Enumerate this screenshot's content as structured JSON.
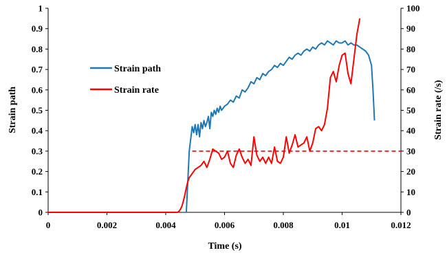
{
  "chart_data": {
    "type": "line",
    "xlabel": "Time (s)",
    "ylabel_left": "Strain path",
    "ylabel_right": "Strain rate (/s)",
    "xlim": [
      0,
      0.012
    ],
    "ylim_left": [
      0,
      1
    ],
    "ylim_right": [
      0,
      100
    ],
    "x_ticks": [
      "0",
      "0.002",
      "0.004",
      "0.006",
      "0.008",
      "0.01",
      "0.012"
    ],
    "y_left_ticks": [
      "0",
      "0.1",
      "0.2",
      "0.3",
      "0.4",
      "0.5",
      "0.6",
      "0.7",
      "0.8",
      "0.9",
      "1"
    ],
    "y_right_ticks": [
      "0",
      "10",
      "20",
      "30",
      "40",
      "50",
      "60",
      "70",
      "80",
      "90",
      "100"
    ],
    "grid": false,
    "legend_position": "upper-left",
    "series": [
      {
        "name": "Strain path",
        "axis": "left",
        "color": "#1f77b4",
        "x": [
          0.0047,
          0.00475,
          0.0048,
          0.00485,
          0.0049,
          0.00495,
          0.005,
          0.00505,
          0.0051,
          0.00515,
          0.0052,
          0.00525,
          0.0053,
          0.00535,
          0.0054,
          0.00545,
          0.0055,
          0.00555,
          0.0056,
          0.00565,
          0.0057,
          0.00575,
          0.0058,
          0.00585,
          0.0059,
          0.006,
          0.0061,
          0.0062,
          0.0063,
          0.0064,
          0.0065,
          0.0066,
          0.0067,
          0.0068,
          0.0069,
          0.007,
          0.0071,
          0.0072,
          0.0073,
          0.0074,
          0.0075,
          0.0076,
          0.0077,
          0.0078,
          0.0079,
          0.008,
          0.0081,
          0.0082,
          0.0083,
          0.0084,
          0.0085,
          0.0086,
          0.0087,
          0.0088,
          0.0089,
          0.009,
          0.0091,
          0.0092,
          0.0093,
          0.0094,
          0.0095,
          0.0096,
          0.0097,
          0.0098,
          0.0099,
          0.01,
          0.0101,
          0.0102,
          0.0103,
          0.0104,
          0.0105,
          0.0106,
          0.0107,
          0.0108,
          0.0109,
          0.011,
          0.01105,
          0.0111
        ],
        "values": [
          0.0,
          0.15,
          0.3,
          0.36,
          0.42,
          0.39,
          0.43,
          0.38,
          0.43,
          0.37,
          0.44,
          0.41,
          0.45,
          0.42,
          0.44,
          0.47,
          0.41,
          0.49,
          0.47,
          0.5,
          0.48,
          0.51,
          0.49,
          0.52,
          0.5,
          0.52,
          0.53,
          0.55,
          0.54,
          0.57,
          0.56,
          0.6,
          0.59,
          0.61,
          0.64,
          0.63,
          0.66,
          0.65,
          0.68,
          0.67,
          0.69,
          0.7,
          0.72,
          0.71,
          0.73,
          0.72,
          0.74,
          0.76,
          0.75,
          0.77,
          0.78,
          0.77,
          0.79,
          0.8,
          0.79,
          0.81,
          0.8,
          0.82,
          0.83,
          0.82,
          0.84,
          0.83,
          0.82,
          0.84,
          0.83,
          0.83,
          0.84,
          0.82,
          0.83,
          0.82,
          0.82,
          0.81,
          0.8,
          0.79,
          0.77,
          0.72,
          0.6,
          0.45
        ]
      },
      {
        "name": "Strain rate",
        "axis": "right",
        "color": "#ff0000",
        "x": [
          0.0,
          0.0044,
          0.00445,
          0.0045,
          0.00455,
          0.0046,
          0.00465,
          0.0047,
          0.00475,
          0.0048,
          0.0049,
          0.005,
          0.0051,
          0.0052,
          0.0053,
          0.0054,
          0.0055,
          0.0056,
          0.0057,
          0.0058,
          0.0059,
          0.006,
          0.0061,
          0.0062,
          0.0063,
          0.0064,
          0.0065,
          0.0066,
          0.0067,
          0.0068,
          0.0069,
          0.007,
          0.0071,
          0.0072,
          0.0073,
          0.0074,
          0.0075,
          0.0076,
          0.0077,
          0.0078,
          0.0079,
          0.008,
          0.0081,
          0.0082,
          0.0083,
          0.0084,
          0.0085,
          0.0086,
          0.0087,
          0.0088,
          0.0089,
          0.009,
          0.0091,
          0.0092,
          0.0093,
          0.0094,
          0.0095,
          0.0096,
          0.0097,
          0.0098,
          0.0099,
          0.01,
          0.0101,
          0.0102,
          0.0103,
          0.0104,
          0.0105,
          0.0106
        ],
        "values": [
          0,
          0,
          0.5,
          1.5,
          3,
          5.5,
          8.5,
          12,
          15,
          17,
          19,
          21,
          22,
          23,
          25,
          22,
          26,
          31,
          30,
          29,
          26,
          27,
          30,
          24,
          22,
          28,
          31,
          27,
          24,
          26,
          23,
          37,
          28,
          25,
          27,
          24,
          27,
          24,
          32,
          25,
          24,
          27,
          37,
          29,
          33,
          38,
          32,
          33,
          34,
          37,
          30,
          34,
          41,
          42,
          40,
          43,
          51,
          66,
          69,
          64,
          72,
          77,
          78,
          68,
          63,
          75,
          87,
          95
        ]
      }
    ],
    "reference_line": {
      "axis": "right",
      "value": 30,
      "x_start": 0.0049,
      "color": "#ff0000",
      "style": "dashed"
    }
  }
}
